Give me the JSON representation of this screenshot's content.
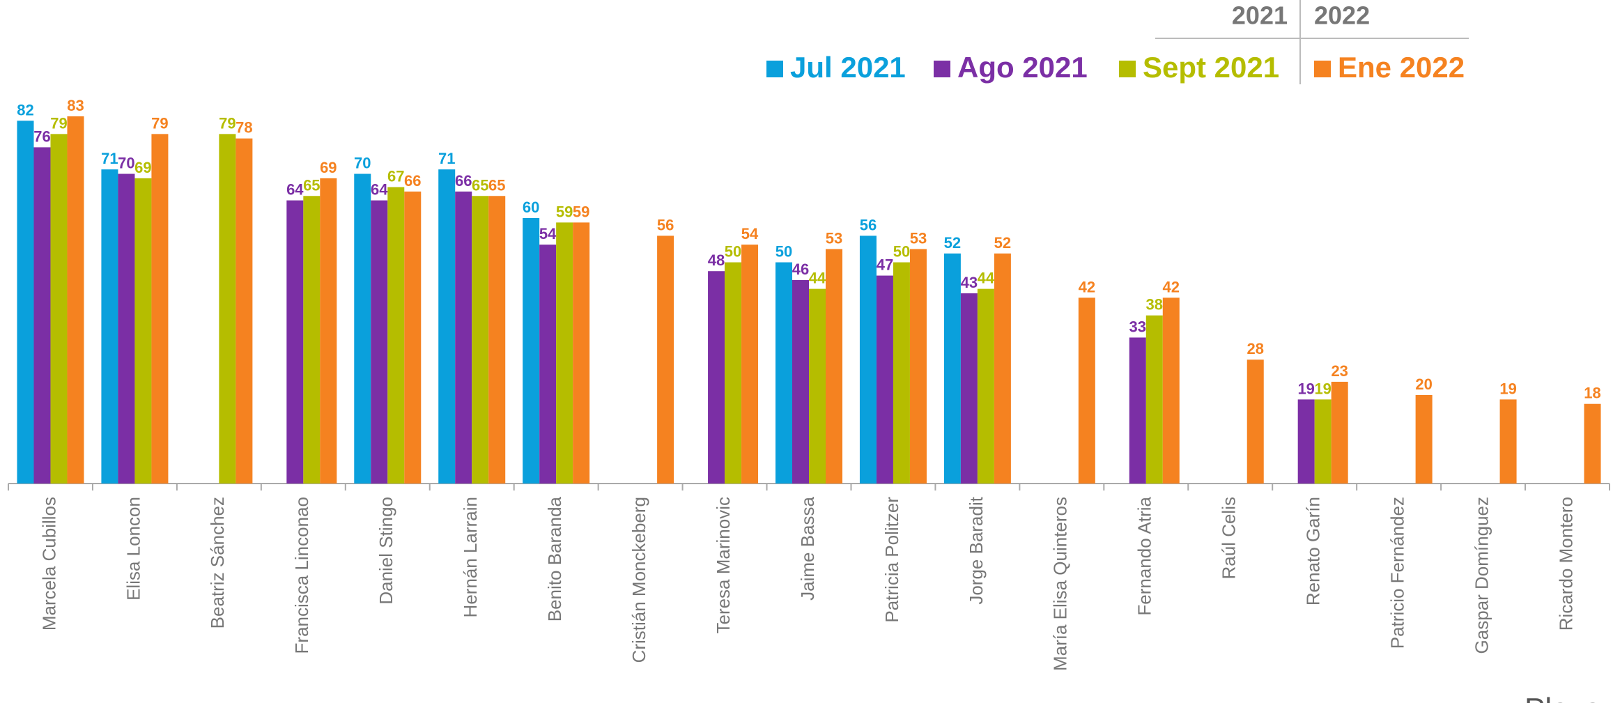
{
  "chart_data": {
    "type": "bar",
    "legend_groups": [
      "2021",
      "2022"
    ],
    "watermark": "Plaza",
    "categories": [
      "Marcela Cubillos",
      "Elisa Loncon",
      "Beatriz Sánchez",
      "Francisca Linconao",
      "Daniel Stingo",
      "Hernán Larrain",
      "Benito Baranda",
      "Cristián Monckeberg",
      "Teresa Marinovic",
      "Jaime Bassa",
      "Patricia Politzer",
      "Jorge Baradit",
      "María Elisa Quinteros",
      "Fernando Atria",
      "Raúl Celis",
      "Renato Garín",
      "Patricio Fernández",
      "Gaspar Domínguez",
      "Ricardo Montero"
    ],
    "series": [
      {
        "name": "Jul 2021",
        "color": "#0aa0dc",
        "values": [
          82,
          71,
          null,
          null,
          70,
          71,
          60,
          null,
          null,
          50,
          56,
          52,
          null,
          null,
          null,
          null,
          null,
          null,
          null
        ]
      },
      {
        "name": "Ago 2021",
        "color": "#7b2fa5",
        "values": [
          76,
          70,
          null,
          64,
          64,
          66,
          54,
          null,
          48,
          46,
          47,
          43,
          null,
          33,
          null,
          19,
          null,
          null,
          null
        ]
      },
      {
        "name": "Sept 2021",
        "color": "#b5bd00",
        "values": [
          79,
          69,
          79,
          65,
          67,
          65,
          59,
          null,
          50,
          44,
          50,
          44,
          null,
          38,
          null,
          19,
          null,
          null,
          null
        ]
      },
      {
        "name": "Ene 2022",
        "color": "#f58220",
        "values": [
          83,
          79,
          78,
          69,
          66,
          65,
          59,
          56,
          54,
          53,
          53,
          52,
          42,
          42,
          28,
          23,
          20,
          19,
          18
        ]
      }
    ],
    "ylim": [
      0,
      100
    ]
  }
}
